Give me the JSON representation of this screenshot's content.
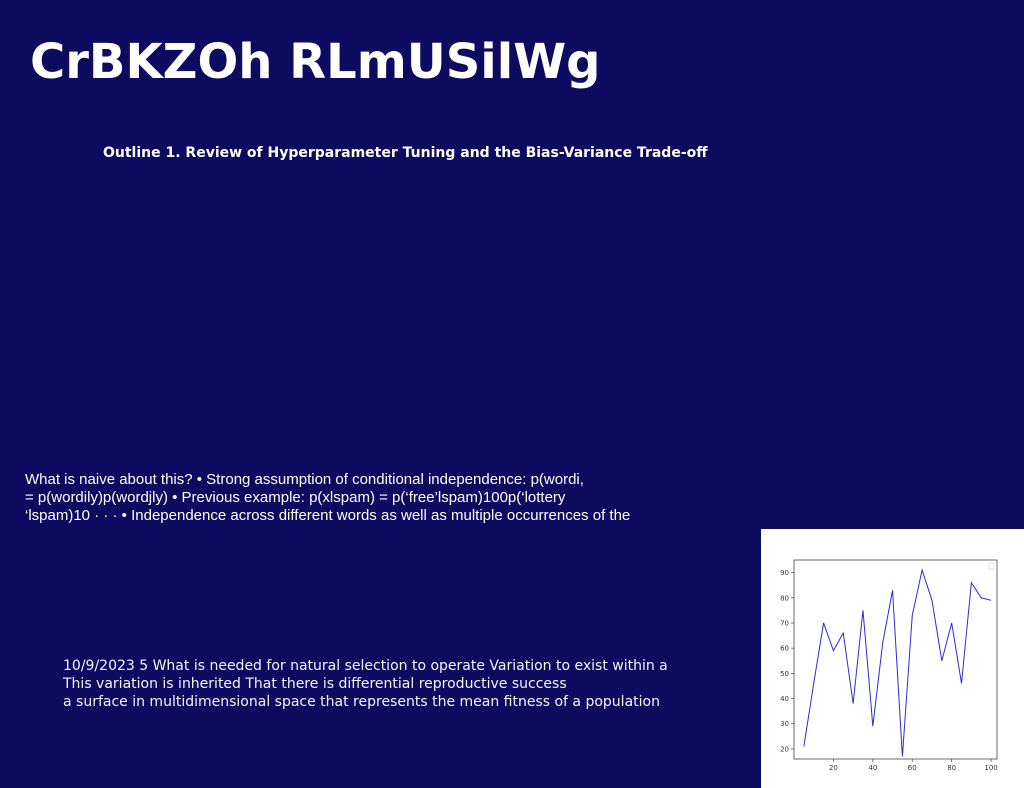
{
  "slide": {
    "title": "CrBKZOh RLmUSilWg",
    "outline": "Outline 1. Review of Hyperparameter Tuning and the Bias-Variance Trade-off",
    "paragraph1": [
      "What is naive about this? • Strong assumption of conditional independence: p(wordi,",
      "= p(wordily)p(wordjly) • Previous example: p(xlspam) = p(‘free’lspam)100p(‘lottery",
      "‘lspam)10 · · · • Independence across different words as well as multiple occurrences of the"
    ],
    "paragraph2": [
      "10/9/2023 5 What is needed for natural selection to operate Variation to exist within a",
      "This variation is inherited That there is differential reproductive success",
      "a surface in multidimensional space that represents the mean fitness of a population"
    ]
  },
  "colors": {
    "background": "#0e0a5f",
    "text": "#ffffff",
    "line": "#2c2cd8"
  },
  "chart_data": {
    "type": "line",
    "title": "",
    "xlabel": "",
    "ylabel": "",
    "xlim": [
      0,
      103
    ],
    "ylim": [
      16,
      95
    ],
    "x_ticks": [
      20,
      40,
      60,
      80,
      100
    ],
    "y_ticks": [
      20,
      30,
      40,
      50,
      60,
      70,
      80,
      90
    ],
    "grid": false,
    "legend": "top-right",
    "series": [
      {
        "x": [
          5,
          10,
          15,
          20,
          25,
          30,
          35,
          40,
          45,
          50,
          55,
          60,
          65,
          70,
          75,
          80,
          85,
          90,
          95,
          100
        ],
        "values": [
          21,
          46,
          70,
          59,
          66,
          38,
          75,
          29,
          62,
          83,
          17,
          73,
          91,
          79,
          55,
          70,
          46,
          86,
          80,
          79
        ]
      }
    ]
  }
}
